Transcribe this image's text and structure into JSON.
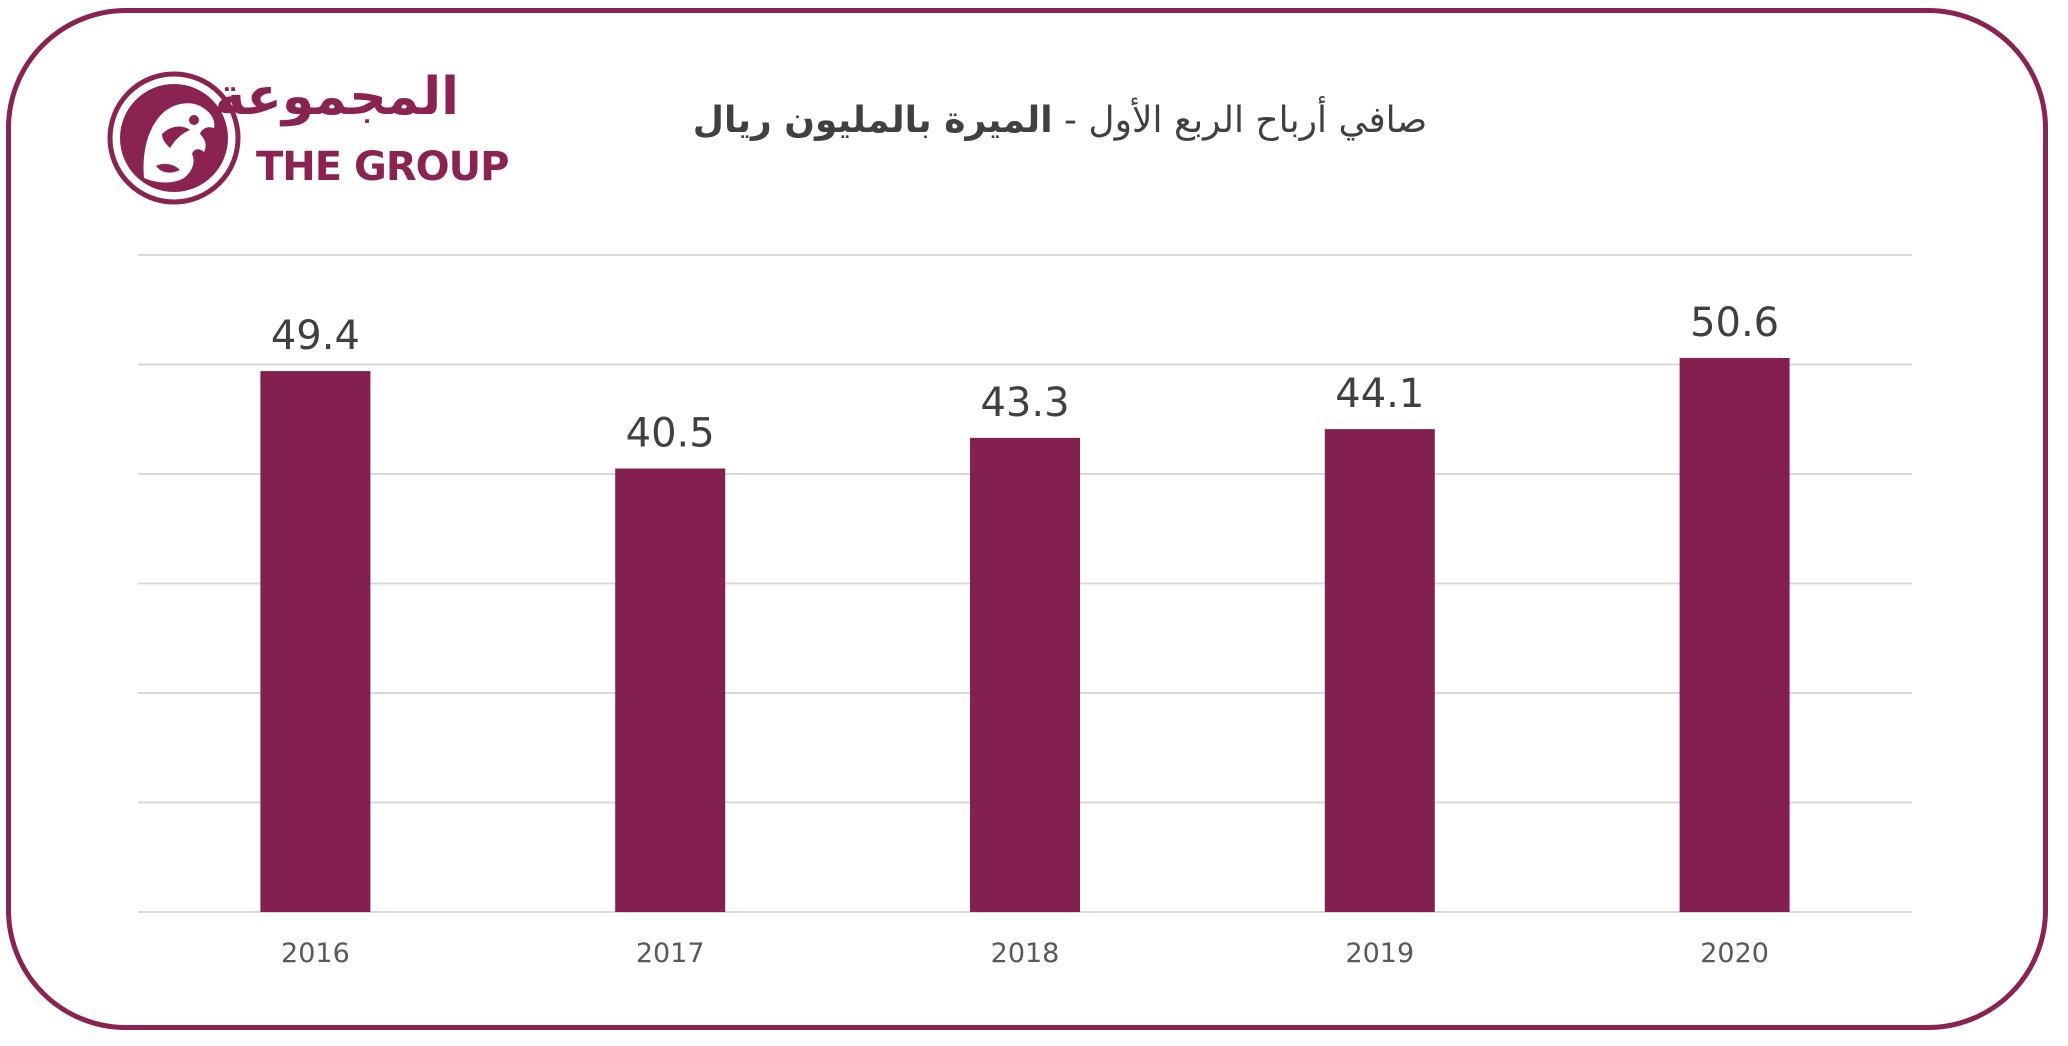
{
  "logo": {
    "name_ar": "المجموعة",
    "name_en": "THE GROUP",
    "icon": "falcon-emblem-icon",
    "color": "#8a2252"
  },
  "chart_data": {
    "type": "bar",
    "title_regular": "صافي أرباح الربع الأول - ",
    "title_bold": "الميرة بالمليون ريال",
    "categories": [
      "2016",
      "2017",
      "2018",
      "2019",
      "2020"
    ],
    "values": [
      49.4,
      40.5,
      43.3,
      44.1,
      50.6
    ],
    "data_labels": [
      "49.4",
      "40.5",
      "43.3",
      "44.1",
      "50.6"
    ],
    "ylim": [
      0,
      60
    ],
    "grid": true,
    "bar_color": "#832050",
    "grid_color": "#d9d9d9",
    "border_color": "#8a2252"
  }
}
